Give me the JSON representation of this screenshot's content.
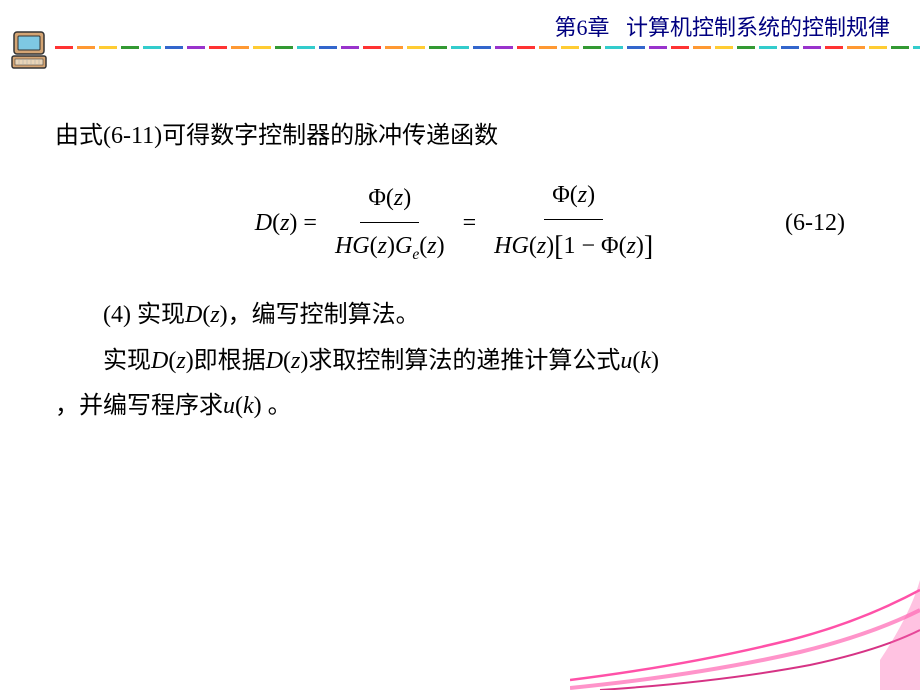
{
  "header": {
    "chapter": "第6章",
    "title": "计算机控制系统的控制规律",
    "title_color": "#000080",
    "fontsize": 22
  },
  "dashes": {
    "colors": [
      "#ff3333",
      "#ff9933",
      "#ffcc33",
      "#339933",
      "#33cccc",
      "#3366cc",
      "#9933cc"
    ],
    "count": 48,
    "width": 18,
    "height": 3
  },
  "icon": {
    "name": "computer-icon",
    "monitor_color": "#7ec8e3",
    "body_color": "#d4a574",
    "outline_color": "#333333"
  },
  "content": {
    "intro": "由式(6-11)可得数字控制器的脉冲传递函数",
    "equation": {
      "lhs": "D(z)",
      "eq": "=",
      "frac1_num_phi": "Φ",
      "frac1_num_arg": "(z)",
      "frac1_den_hg": "HG",
      "frac1_den_arg1": "(z)",
      "frac1_den_ge": "G",
      "frac1_den_sub": "e",
      "frac1_den_arg2": "(z)",
      "frac2_num_phi": "Φ",
      "frac2_num_arg": "(z)",
      "frac2_den_hg": "HG",
      "frac2_den_arg1": "(z)",
      "frac2_den_one": "1",
      "frac2_den_minus": "−",
      "frac2_den_phi": "Φ",
      "frac2_den_arg2": "(z)",
      "label": "(6-12)"
    },
    "para1_pre": "(4) 实现",
    "para1_dz": "D",
    "para1_z": "z",
    "para1_post": ")，编写控制算法。",
    "para2_pre": "实现",
    "para2_d1": "D",
    "para2_z1": "z",
    "para2_mid1": ")即根据",
    "para2_d2": "D",
    "para2_z2": "z",
    "para2_mid2": ")求取控制算法的递推计算公式",
    "para2_u": "u",
    "para2_k": "k",
    "para2_end": ")",
    "para3_pre": "，并编写程序求",
    "para3_u": "u",
    "para3_k": "k",
    "para3_end": ") 。"
  },
  "decoration": {
    "colors": [
      "#ff3399",
      "#ff66b3",
      "#cc0066"
    ]
  },
  "typography": {
    "body_fontsize": 24,
    "body_color": "#000000",
    "line_height": 1.8
  }
}
